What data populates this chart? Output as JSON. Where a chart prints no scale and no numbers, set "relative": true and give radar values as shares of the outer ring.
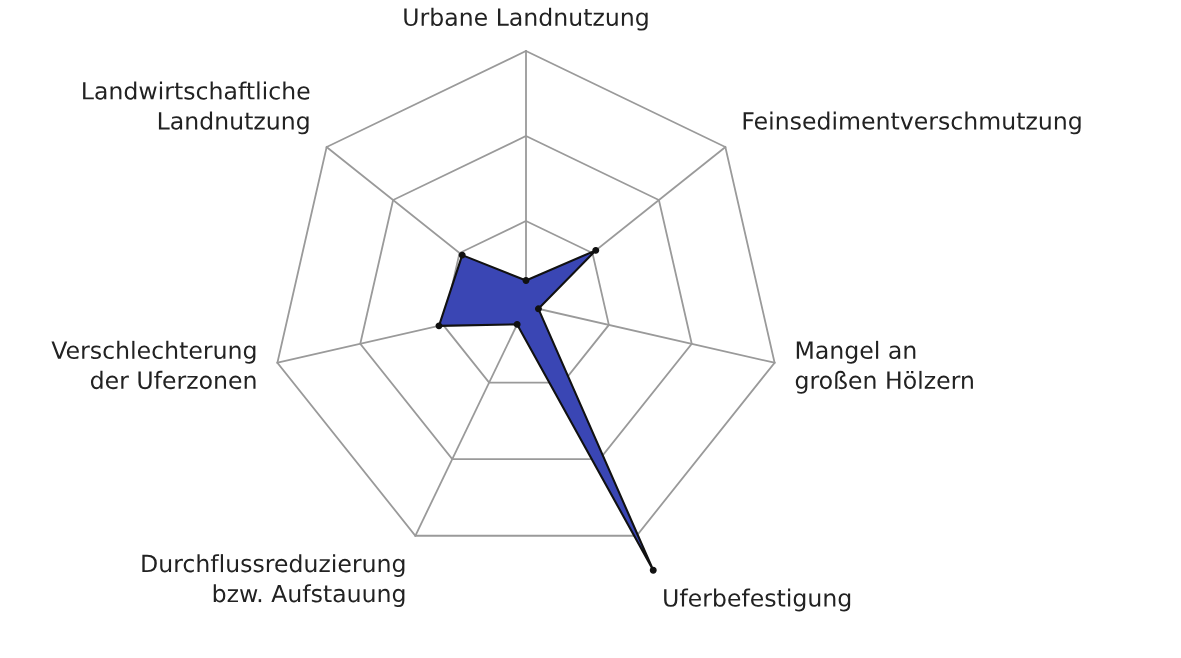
{
  "chart_data": {
    "type": "radar",
    "relative": true,
    "grid": true,
    "marker": "circle",
    "categories": [
      "Urbane Landnutzung",
      "Feinsedimentverschmutzung",
      "Mangel an\ngroßen Hölzern",
      "Uferbefestigung",
      "Durchflussreduzierung\nbzw. Aufstauung",
      "Verschlechterung\nder Uferzonen",
      "Landwirtschaftliche\nLandnutzung"
    ],
    "series": [
      {
        "color": "#3a46b4",
        "values": [
          0.1,
          0.35,
          0.05,
          1.15,
          0.08,
          0.35,
          0.32
        ]
      }
    ]
  }
}
